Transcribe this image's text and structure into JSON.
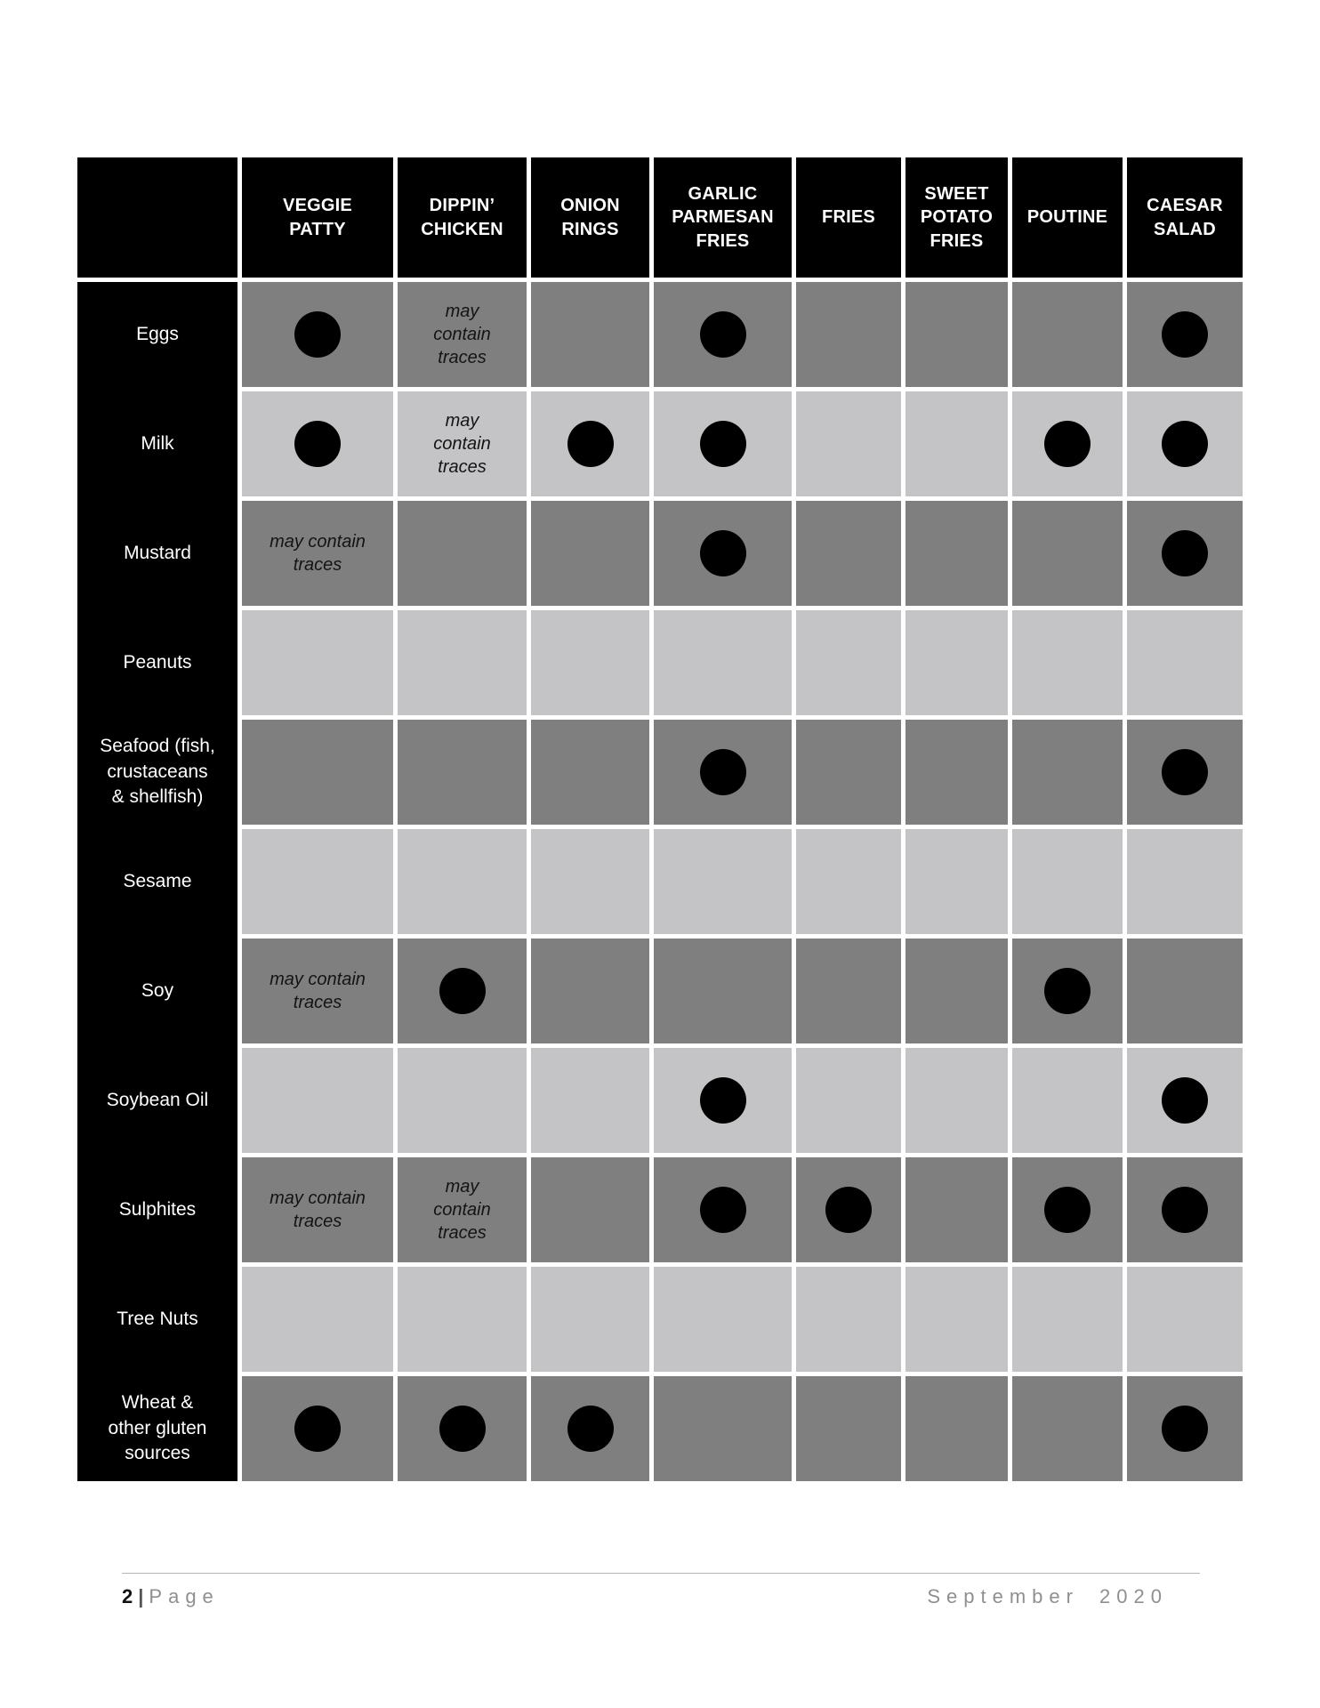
{
  "table": {
    "columns": [
      "VEGGIE\nPATTY",
      "DIPPIN’\nCHICKEN",
      "ONION\nRINGS",
      "GARLIC\nPARMESAN\nFRIES",
      "FRIES",
      "SWEET\nPOTATO\nFRIES",
      "POUTINE",
      "CAESAR\nSALAD"
    ],
    "traces_text": "may contain traces",
    "rows": [
      {
        "label": "Eggs",
        "shade": "dark",
        "cells": [
          "dot",
          "traces",
          "",
          "dot",
          "",
          "",
          "",
          "dot"
        ]
      },
      {
        "label": "Milk",
        "shade": "light",
        "cells": [
          "dot",
          "traces",
          "dot",
          "dot",
          "",
          "",
          "dot",
          "dot"
        ]
      },
      {
        "label": "Mustard",
        "shade": "dark",
        "cells": [
          "traces",
          "",
          "",
          "dot",
          "",
          "",
          "",
          "dot"
        ]
      },
      {
        "label": "Peanuts",
        "shade": "light",
        "cells": [
          "",
          "",
          "",
          "",
          "",
          "",
          "",
          ""
        ]
      },
      {
        "label": "Seafood (fish,\ncrustaceans\n& shellfish)",
        "shade": "dark",
        "cells": [
          "",
          "",
          "",
          "dot",
          "",
          "",
          "",
          "dot"
        ]
      },
      {
        "label": "Sesame",
        "shade": "light",
        "cells": [
          "",
          "",
          "",
          "",
          "",
          "",
          "",
          ""
        ]
      },
      {
        "label": "Soy",
        "shade": "dark",
        "cells": [
          "traces",
          "dot",
          "",
          "",
          "",
          "",
          "dot",
          ""
        ]
      },
      {
        "label": "Soybean Oil",
        "shade": "light",
        "cells": [
          "",
          "",
          "",
          "dot",
          "",
          "",
          "",
          "dot"
        ]
      },
      {
        "label": "Sulphites",
        "shade": "dark",
        "cells": [
          "traces",
          "traces",
          "",
          "dot",
          "dot",
          "",
          "dot",
          "dot"
        ]
      },
      {
        "label": "Tree Nuts",
        "shade": "light",
        "cells": [
          "",
          "",
          "",
          "",
          "",
          "",
          "",
          ""
        ]
      },
      {
        "label": "Wheat &\nother gluten\nsources",
        "shade": "dark",
        "cells": [
          "dot",
          "dot",
          "dot",
          "",
          "",
          "",
          "",
          "dot"
        ]
      }
    ]
  },
  "footer": {
    "page_number": "2",
    "separator": "|",
    "page_label": "Page",
    "date": "September 2020"
  },
  "colors": {
    "header_bg": "#000000",
    "row_dark": "#7f7f7f",
    "row_light": "#c4c4c6",
    "dot": "#000000"
  }
}
